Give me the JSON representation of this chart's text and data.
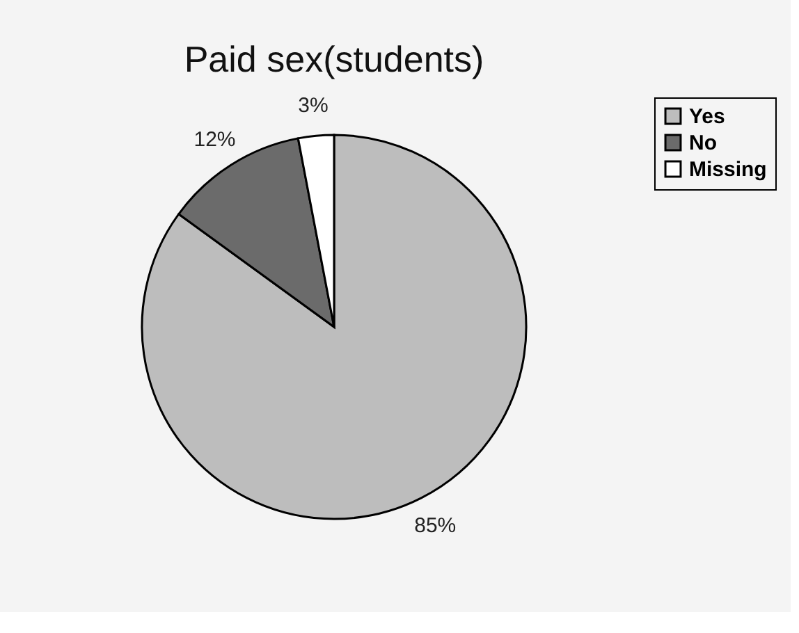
{
  "chart_data": {
    "type": "pie",
    "title": "Paid sex(students)",
    "categories": [
      "Yes",
      "No",
      "Missing"
    ],
    "values": [
      85,
      12,
      3
    ],
    "colors": [
      "#bdbdbd",
      "#6b6b6b",
      "#ffffff"
    ],
    "value_labels": [
      "85%",
      "12%",
      "3%"
    ],
    "legend": "right"
  }
}
